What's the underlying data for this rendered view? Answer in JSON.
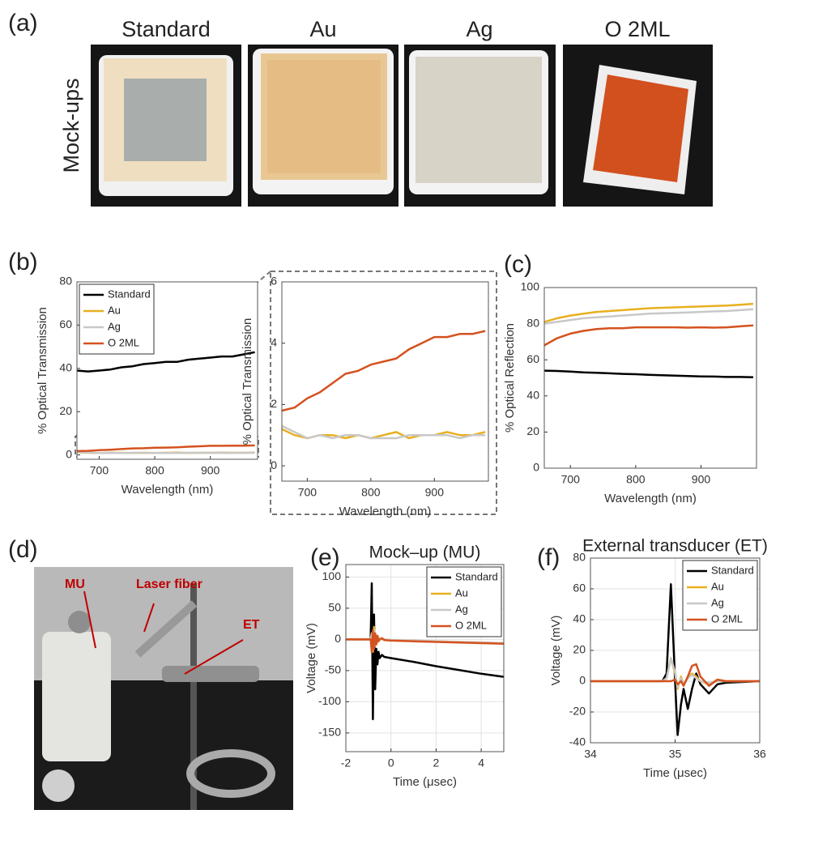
{
  "panel_labels": [
    "(a)",
    "(b)",
    "(c)",
    "(d)",
    "(e)",
    "(f)"
  ],
  "photo_captions": [
    "Standard",
    "Au",
    "Ag",
    "O 2ML"
  ],
  "mock_ups_label": "Mock-ups",
  "setup_labels": [
    "MU",
    "Laser fiber",
    "ET"
  ],
  "chart_data": [
    {
      "type": "line",
      "ylabel": "% Optical Transmission",
      "xlabel": "Wavelength (nm)",
      "xlim": [
        660,
        985
      ],
      "xticks": [
        700,
        800,
        900
      ],
      "ylim": [
        -2,
        80
      ],
      "yticks": [
        0,
        20,
        40,
        60,
        80
      ],
      "legend": "upper left",
      "grid": false,
      "x": [
        660,
        680,
        700,
        720,
        740,
        760,
        780,
        800,
        820,
        840,
        860,
        880,
        900,
        920,
        940,
        960,
        980
      ],
      "series": [
        {
          "name": "Standard",
          "color": "#000000",
          "values": [
            39,
            38.6,
            39,
            39.5,
            40.5,
            41,
            42,
            42.5,
            43,
            43,
            44,
            44.5,
            45,
            45.5,
            45.5,
            46.5,
            47.5
          ]
        },
        {
          "name": "Au",
          "color": "#e8b021",
          "values": [
            1.2,
            1,
            0.9,
            1,
            1,
            0.9,
            1,
            0.9,
            1,
            1.1,
            0.9,
            1,
            1,
            1.1,
            1,
            1,
            1.1
          ]
        },
        {
          "name": "Ag",
          "color": "#c8c8c8",
          "values": [
            1.3,
            1.1,
            0.9,
            1,
            0.9,
            1,
            1,
            0.9,
            0.9,
            0.9,
            1,
            1,
            1,
            1,
            0.9,
            1,
            1
          ]
        },
        {
          "name": "O 2ML",
          "color": "#d4521f",
          "values": [
            1.8,
            1.9,
            2.2,
            2.4,
            2.7,
            3,
            3.1,
            3.3,
            3.4,
            3.5,
            3.8,
            4,
            4.2,
            4.2,
            4.3,
            4.3,
            4.4
          ]
        }
      ]
    },
    {
      "type": "line",
      "ylabel": "% Optical Transmission",
      "xlabel": "Wavelength (nm)",
      "xlim": [
        660,
        985
      ],
      "xticks": [
        700,
        800,
        900
      ],
      "ylim": [
        -0.5,
        6
      ],
      "yticks": [
        0,
        2,
        4,
        6
      ],
      "grid": false,
      "x": [
        660,
        680,
        700,
        720,
        740,
        760,
        780,
        800,
        820,
        840,
        860,
        880,
        900,
        920,
        940,
        960,
        980
      ],
      "series": [
        {
          "color": "#e8b021",
          "values": [
            1.2,
            1,
            0.9,
            1,
            1,
            0.9,
            1,
            0.9,
            1,
            1.1,
            0.9,
            1,
            1,
            1.1,
            1,
            1,
            1.1
          ]
        },
        {
          "color": "#c8c8c8",
          "values": [
            1.3,
            1.1,
            0.9,
            1,
            0.9,
            1,
            1,
            0.9,
            0.9,
            0.9,
            1,
            1,
            1,
            1,
            0.9,
            1,
            1
          ]
        },
        {
          "color": "#d4521f",
          "values": [
            1.8,
            1.9,
            2.2,
            2.4,
            2.7,
            3,
            3.1,
            3.3,
            3.4,
            3.5,
            3.8,
            4,
            4.2,
            4.2,
            4.3,
            4.3,
            4.4
          ]
        }
      ]
    },
    {
      "type": "line",
      "ylabel": "% Optical Reflection",
      "xlabel": "Wavelength (nm)",
      "xlim": [
        660,
        985
      ],
      "xticks": [
        700,
        800,
        900
      ],
      "ylim": [
        0,
        100
      ],
      "yticks": [
        0,
        20,
        40,
        60,
        80,
        100
      ],
      "grid": false,
      "x": [
        660,
        680,
        700,
        720,
        740,
        760,
        780,
        800,
        820,
        840,
        860,
        880,
        900,
        920,
        940,
        960,
        980
      ],
      "series": [
        {
          "color": "#000000",
          "values": [
            54,
            53.8,
            53.5,
            53,
            52.8,
            52.5,
            52.2,
            52,
            51.7,
            51.5,
            51.2,
            51,
            50.8,
            50.7,
            50.5,
            50.5,
            50.3
          ]
        },
        {
          "color": "#e8b021",
          "values": [
            81,
            83,
            84.5,
            85.5,
            86.5,
            87,
            87.5,
            88,
            88.5,
            88.8,
            89,
            89.3,
            89.5,
            89.8,
            90,
            90.5,
            91
          ]
        },
        {
          "color": "#c8c8c8",
          "values": [
            80,
            81,
            82,
            83,
            83.5,
            84,
            84.5,
            85,
            85.5,
            85.8,
            86,
            86.2,
            86.5,
            86.8,
            87,
            87.5,
            88
          ]
        },
        {
          "color": "#d4521f",
          "values": [
            68,
            72,
            74.5,
            76,
            77,
            77.5,
            77.5,
            78,
            78,
            78,
            78,
            77.8,
            78,
            77.8,
            78,
            78.5,
            79
          ]
        }
      ]
    },
    {
      "type": "line",
      "title": "Mock–up (MU)",
      "ylabel": "Voltage (mV)",
      "xlabel": "Time (μsec)",
      "xlim": [
        -2,
        5
      ],
      "xticks": [
        -2,
        0,
        2,
        4
      ],
      "ylim": [
        -180,
        120
      ],
      "yticks": [
        -150,
        -100,
        -50,
        0,
        50,
        100
      ],
      "legend": "upper right",
      "grid": true,
      "x": [
        -2,
        -1,
        -0.9,
        -0.85,
        -0.8,
        -0.75,
        -0.7,
        -0.65,
        -0.6,
        -0.55,
        -0.5,
        -0.4,
        -0.3,
        0,
        1,
        2,
        3,
        4,
        5
      ],
      "series": [
        {
          "name": "Standard",
          "color": "#000000",
          "values": [
            0,
            0,
            0,
            90,
            -128,
            40,
            -80,
            -15,
            -40,
            -20,
            -30,
            -25,
            -28,
            -30,
            -36,
            -43,
            -49,
            -55,
            -60
          ]
        },
        {
          "name": "Au",
          "color": "#e8b021",
          "values": [
            0,
            0,
            0,
            10,
            -20,
            20,
            -10,
            5,
            -5,
            3,
            0,
            0,
            0,
            -1,
            -2,
            -3,
            -4,
            -5,
            -6
          ]
        },
        {
          "name": "Ag",
          "color": "#c8c8c8",
          "values": [
            0,
            0,
            0,
            8,
            -15,
            15,
            -8,
            4,
            -4,
            2,
            0,
            0,
            0,
            -1,
            -2,
            -3,
            -4,
            -5,
            -6
          ]
        },
        {
          "name": "O 2ML",
          "color": "#d4521f",
          "values": [
            0,
            0,
            0,
            -20,
            15,
            -15,
            10,
            -8,
            6,
            -3,
            0,
            2,
            -1,
            -2,
            -3,
            -4,
            -5,
            -6,
            -7
          ]
        }
      ]
    },
    {
      "type": "line",
      "title": "External transducer (ET)",
      "ylabel": "Voltage (mV)",
      "xlabel": "Time (μsec)",
      "xlim": [
        34,
        36
      ],
      "xticks": [
        34,
        35,
        36
      ],
      "ylim": [
        -40,
        80
      ],
      "yticks": [
        -40,
        -20,
        0,
        20,
        40,
        60,
        80
      ],
      "legend": "upper right",
      "grid": true,
      "x": [
        34,
        34.85,
        34.9,
        34.95,
        35.0,
        35.03,
        35.07,
        35.1,
        35.15,
        35.2,
        35.25,
        35.3,
        35.4,
        35.5,
        35.6,
        36
      ],
      "series": [
        {
          "name": "Standard",
          "color": "#000000",
          "values": [
            0,
            0,
            5,
            63,
            0,
            -35,
            -15,
            -5,
            -18,
            -5,
            5,
            -2,
            -8,
            -2,
            -1,
            0
          ]
        },
        {
          "name": "Au",
          "color": "#e8b021",
          "values": [
            0,
            0,
            2,
            15,
            5,
            -5,
            3,
            -2,
            2,
            5,
            3,
            0,
            -2,
            1,
            0,
            0
          ]
        },
        {
          "name": "Ag",
          "color": "#c8c8c8",
          "values": [
            0,
            0,
            2,
            15,
            6,
            -4,
            2,
            -2,
            2,
            4,
            2,
            0,
            -1,
            0,
            0,
            0
          ]
        },
        {
          "name": "O 2ML",
          "color": "#d4521f",
          "values": [
            0,
            0,
            0,
            0,
            1,
            -2,
            0,
            -3,
            3,
            10,
            11,
            3,
            -3,
            1,
            0,
            0
          ]
        }
      ]
    }
  ]
}
